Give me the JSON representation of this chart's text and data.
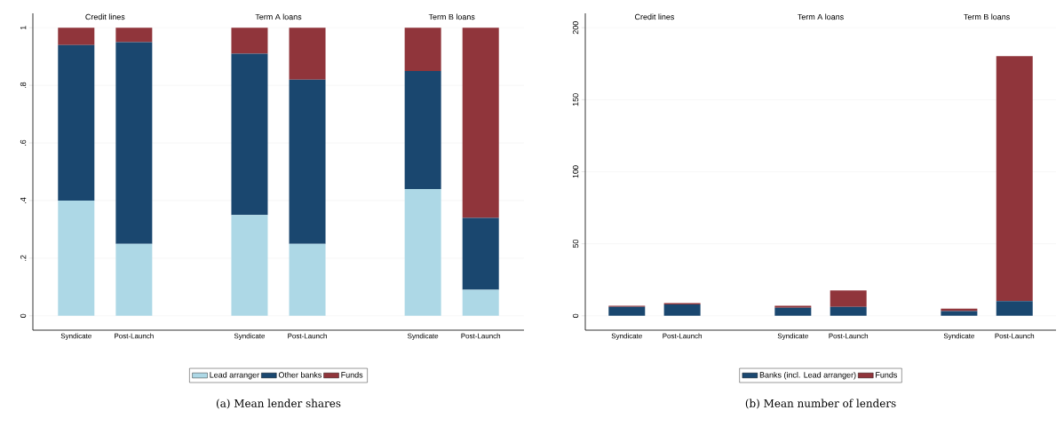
{
  "chart_data": [
    {
      "type": "bar",
      "title": "(a) Mean lender shares",
      "stacked": true,
      "grid": "y",
      "legend": "bottom",
      "categories": [
        "Syndicate",
        "Post-Launch",
        "Syndicate",
        "Post-Launch",
        "Syndicate",
        "Post-Launch"
      ],
      "annotations": [
        "Credit lines",
        "Term A loans",
        "Term B loans"
      ],
      "series": [
        {
          "name": "Lead arranger",
          "color": "#add8e6",
          "values": [
            0.4,
            0.25,
            0.35,
            0.25,
            0.44,
            0.09
          ]
        },
        {
          "name": "Other banks",
          "color": "#1a476f",
          "values": [
            0.54,
            0.7,
            0.56,
            0.57,
            0.41,
            0.25
          ]
        },
        {
          "name": "Funds",
          "color": "#90353b",
          "values": [
            0.06,
            0.05,
            0.09,
            0.18,
            0.15,
            0.66
          ]
        }
      ],
      "ylim": [
        -0.05,
        1.05
      ],
      "yticks": [
        0,
        {
          "value": 0.2,
          "label": ".2"
        },
        {
          "value": 0.4,
          "label": ".4"
        },
        {
          "value": 0.6,
          "label": ".6"
        },
        {
          "value": 0.8,
          "label": ".8"
        },
        1
      ]
    },
    {
      "type": "bar",
      "title": "(b) Mean number of lenders",
      "stacked": true,
      "grid": "y",
      "legend": "bottom",
      "categories": [
        "Syndicate",
        "Post-Launch",
        "Syndicate",
        "Post-Launch",
        "Syndicate",
        "Post-Launch"
      ],
      "annotations": [
        "Credit lines",
        "Term A loans",
        "Term B loans"
      ],
      "series": [
        {
          "name": "Banks (incl. Lead arranger)",
          "color": "#1a476f",
          "values": [
            6.2,
            7.8,
            5.5,
            6.2,
            3.3,
            10.2
          ]
        },
        {
          "name": "Funds",
          "color": "#90353b",
          "values": [
            0.7,
            1.0,
            1.4,
            11.4,
            1.7,
            170
          ]
        }
      ],
      "ylim": [
        -10,
        210
      ],
      "yticks": [
        0,
        50,
        100,
        150,
        200
      ]
    }
  ]
}
